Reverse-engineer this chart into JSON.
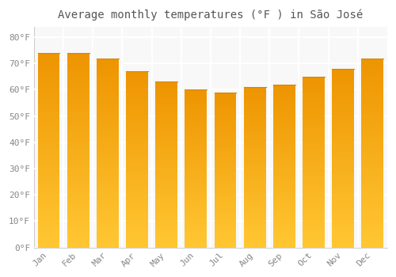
{
  "title": "Average monthly temperatures (°F ) in São José",
  "months": [
    "Jan",
    "Feb",
    "Mar",
    "Apr",
    "May",
    "Jun",
    "Jul",
    "Aug",
    "Sep",
    "Oct",
    "Nov",
    "Dec"
  ],
  "values": [
    74,
    74,
    72,
    67,
    63,
    60,
    59,
    61,
    62,
    65,
    68,
    72
  ],
  "bar_color_main": "#FFB020",
  "bar_color_light": "#FFD070",
  "bar_edge_color": "#E09000",
  "yticks": [
    0,
    10,
    20,
    30,
    40,
    50,
    60,
    70,
    80
  ],
  "ytick_labels": [
    "0°F",
    "10°F",
    "20°F",
    "30°F",
    "40°F",
    "50°F",
    "60°F",
    "70°F",
    "80°F"
  ],
  "ylim": [
    0,
    84
  ],
  "bg_color": "#ffffff",
  "plot_bg_color": "#f8f8f8",
  "grid_color": "#e8e8e8",
  "title_fontsize": 10,
  "tick_fontsize": 8,
  "bar_width": 0.75,
  "tick_color": "#888888"
}
